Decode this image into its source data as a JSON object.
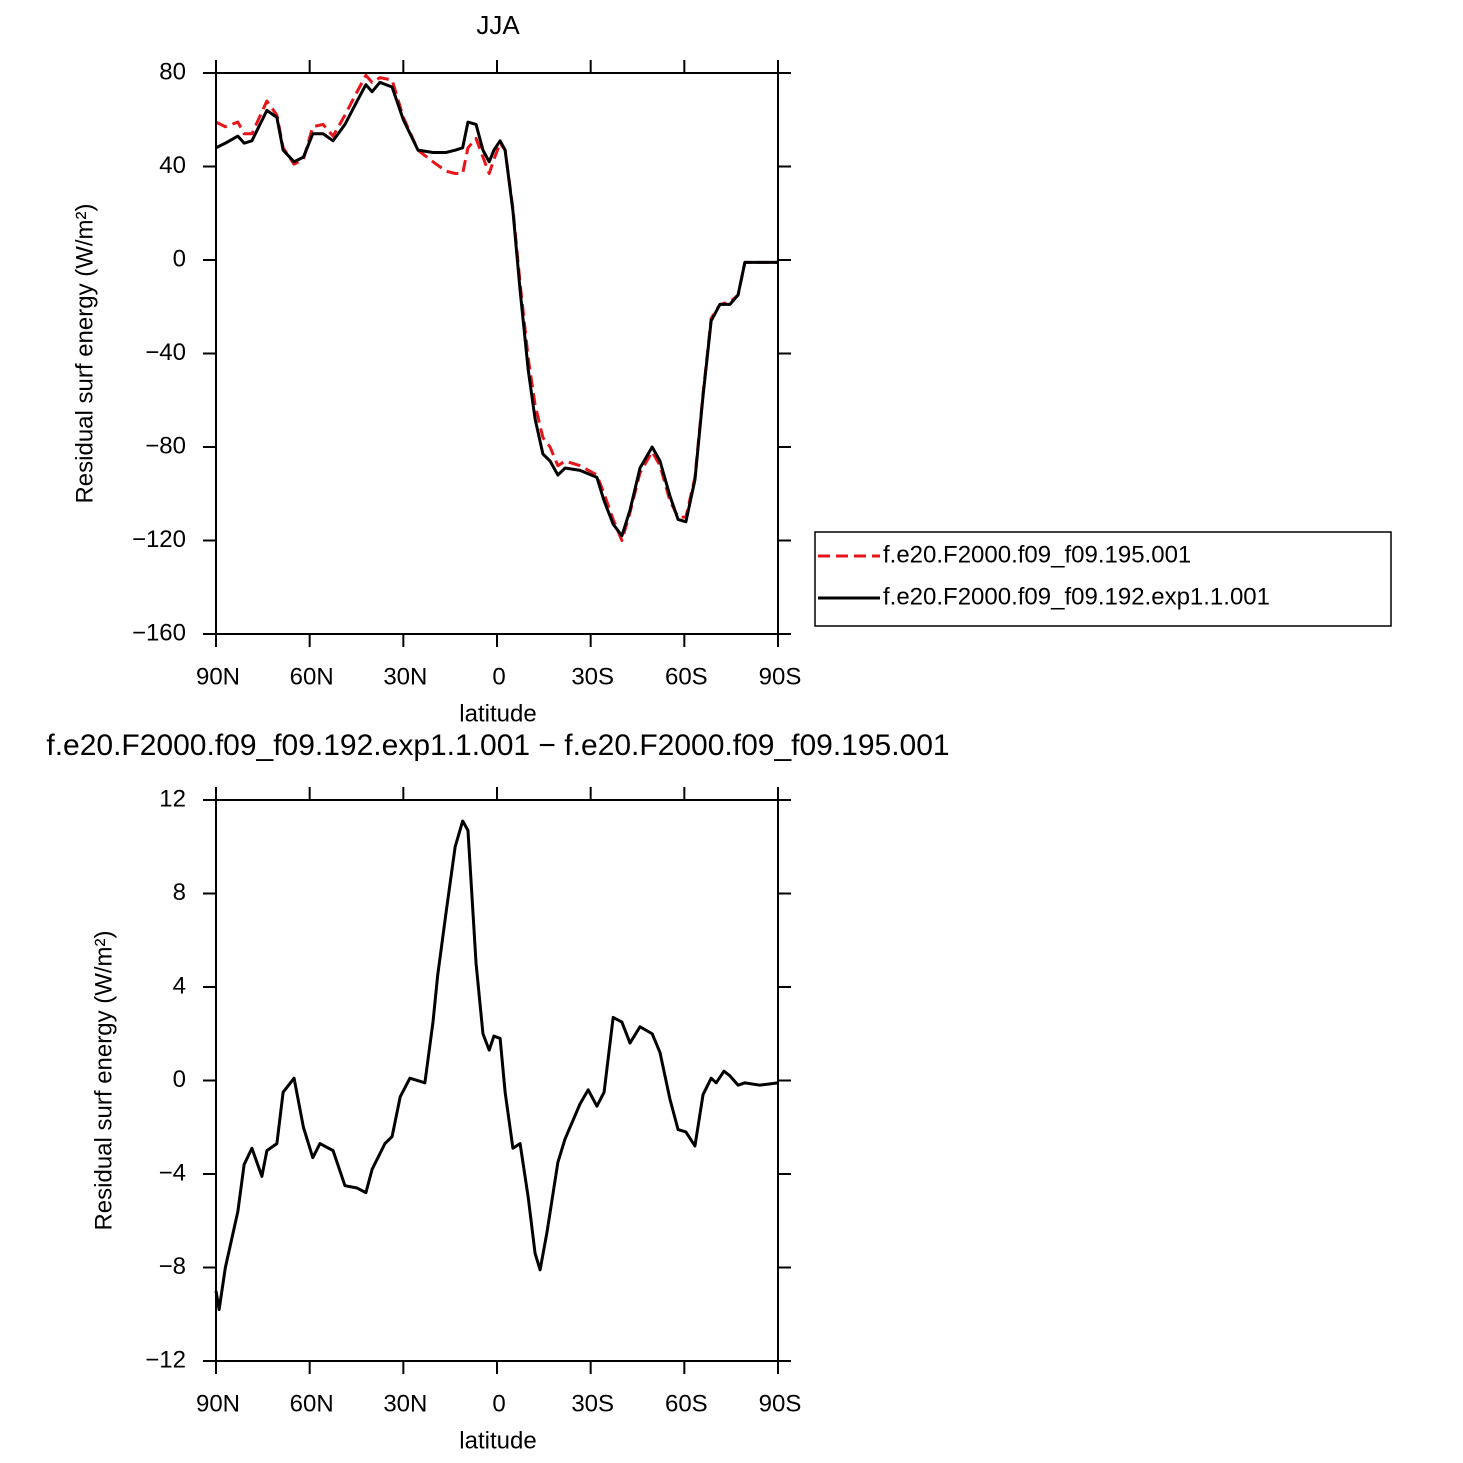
{
  "chart_data": [
    {
      "type": "line",
      "title": "JJA",
      "xlabel": "latitude",
      "ylabel": "Residual surf energy (W/m²)",
      "x": [
        90,
        87,
        83,
        81,
        78.5,
        73.7,
        70.5,
        68.5,
        65,
        62,
        59,
        55.7,
        52.5,
        48.7,
        44.8,
        42,
        40,
        37.5,
        33.6,
        30,
        25.3,
        20.5,
        16.3,
        13.4,
        11,
        9.3,
        6.7,
        4.5,
        2.5,
        1,
        -1,
        -2.6,
        -5.1,
        -7.4,
        -10,
        -12.2,
        -14.7,
        -17,
        -19.5,
        -21.8,
        -26.6,
        -32,
        -34.3,
        -37.2,
        -40,
        -42.6,
        -45.8,
        -49.7,
        -52.2,
        -55.4,
        -58,
        -60.5,
        -63.4,
        -66,
        -68.6,
        -71.4,
        -74.6,
        -77.2,
        -79.4,
        -84.2,
        -90
      ],
      "series": [
        {
          "name": "f.e20.F2000.f09_f09.195.001",
          "color": "#e8141a",
          "linestyle": "dashed",
          "values": [
            59,
            57,
            59,
            54,
            54,
            68,
            62,
            48,
            41,
            43,
            57,
            58,
            53,
            62,
            72,
            79,
            76,
            78,
            77,
            61,
            47,
            42,
            38,
            37,
            37,
            48,
            52,
            44,
            37,
            43,
            50,
            47,
            22,
            -10,
            -42,
            -62,
            -76,
            -80,
            -88,
            -86,
            -88,
            -92,
            -100,
            -111,
            -120,
            -108,
            -91,
            -82,
            -88,
            -103,
            -110,
            -110,
            -93,
            -57,
            -25,
            -19,
            -18,
            -15,
            -1,
            -1,
            -1
          ]
        },
        {
          "name": "f.e20.F2000.f09_f09.192.exp1.1.001",
          "color": "#000000",
          "linestyle": "solid",
          "values": [
            48,
            50,
            53,
            50,
            51,
            64,
            61,
            47,
            42,
            44,
            54,
            54,
            51,
            58,
            68,
            75,
            72,
            76,
            74,
            60,
            47,
            46,
            46,
            47,
            48,
            59,
            58,
            47,
            42,
            47,
            51,
            47,
            21,
            -13,
            -47,
            -68,
            -83,
            -86,
            -92,
            -89,
            -90,
            -93,
            -103,
            -113,
            -118,
            -107,
            -89,
            -80,
            -86,
            -101,
            -111,
            -112,
            -94,
            -58,
            -26,
            -19,
            -19,
            -15,
            -1,
            -1,
            -1
          ]
        }
      ],
      "xlim": [
        90,
        -90
      ],
      "xticks": [
        {
          "value": 90,
          "label": "90N"
        },
        {
          "value": 60,
          "label": "60N"
        },
        {
          "value": 30,
          "label": "30N"
        },
        0,
        {
          "value": -30,
          "label": "30S"
        },
        {
          "value": -60,
          "label": "60S"
        },
        {
          "value": -90,
          "label": "90S"
        }
      ],
      "ylim": [
        -160,
        80
      ],
      "yticks": [
        {
          "value": -160,
          "label": "−160"
        },
        {
          "value": -120,
          "label": "−120"
        },
        {
          "value": -80,
          "label": "−80"
        },
        {
          "value": -40,
          "label": "−40"
        },
        0,
        40,
        80
      ],
      "legend": "outside-right"
    },
    {
      "type": "line",
      "title": "f.e20.F2000.f09_f09.192.exp1.1.001 − f.e20.F2000.f09_f09.195.001",
      "xlabel": "latitude",
      "ylabel": "Residual surf energy (W/m²)",
      "x": [
        90,
        89,
        87,
        83,
        81,
        78.5,
        75.3,
        73.7,
        70.5,
        68.5,
        65,
        62,
        59,
        56.7,
        52.5,
        48.7,
        44.8,
        42,
        40,
        35.9,
        33.6,
        31,
        27.9,
        23.1,
        20.5,
        19,
        16.3,
        13.4,
        11,
        9.3,
        6.7,
        4.5,
        2.5,
        1,
        -1,
        -2.6,
        -5.1,
        -7.4,
        -10,
        -12.2,
        -13.8,
        -16,
        -19.5,
        -21.8,
        -26.6,
        -29.2,
        -32,
        -34.3,
        -37.2,
        -40,
        -42.6,
        -45.8,
        -49.7,
        -52.2,
        -55.4,
        -58,
        -60.5,
        -63.4,
        -66,
        -68.6,
        -70.2,
        -72.7,
        -74.6,
        -77.2,
        -79.4,
        -84.2,
        -90
      ],
      "series": [
        {
          "color": "#000000",
          "linestyle": "solid",
          "values": [
            -9,
            -9.8,
            -8,
            -5.6,
            -3.6,
            -2.9,
            -4.1,
            -3,
            -2.7,
            -0.5,
            0.1,
            -2,
            -3.3,
            -2.7,
            -3,
            -4.5,
            -4.6,
            -4.8,
            -3.8,
            -2.7,
            -2.4,
            -0.7,
            0.1,
            -0.1,
            2.5,
            4.5,
            7.2,
            10,
            11.1,
            10.7,
            5,
            2,
            1.3,
            1.9,
            1.8,
            -0.5,
            -2.9,
            -2.7,
            -5,
            -7.4,
            -8.1,
            -6.5,
            -3.5,
            -2.5,
            -1,
            -0.4,
            -1.1,
            -0.5,
            2.7,
            2.5,
            1.6,
            2.3,
            2,
            1.2,
            -0.8,
            -2.1,
            -2.2,
            -2.8,
            -0.6,
            0.1,
            -0.1,
            0.4,
            0.2,
            -0.2,
            -0.1,
            -0.2,
            -0.1
          ]
        }
      ],
      "xlim": [
        90,
        -90
      ],
      "xticks": [
        {
          "value": 90,
          "label": "90N"
        },
        {
          "value": 60,
          "label": "60N"
        },
        {
          "value": 30,
          "label": "30N"
        },
        0,
        {
          "value": -30,
          "label": "30S"
        },
        {
          "value": -60,
          "label": "60S"
        },
        {
          "value": -90,
          "label": "90S"
        }
      ],
      "ylim": [
        -12,
        12
      ],
      "yticks": [
        {
          "value": -12,
          "label": "−12"
        },
        {
          "value": -8,
          "label": "−8"
        },
        {
          "value": -4,
          "label": "−4"
        },
        0,
        4,
        8,
        12
      ]
    }
  ]
}
